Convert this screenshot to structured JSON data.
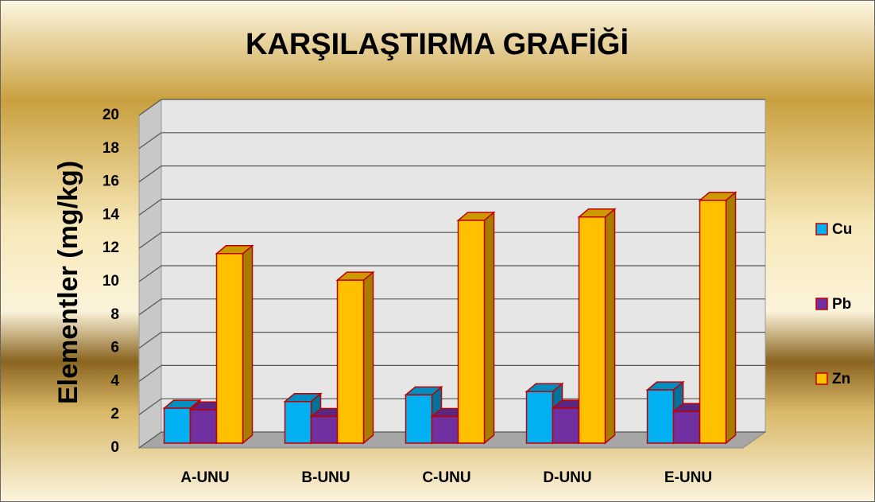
{
  "chart_data": {
    "type": "bar3d",
    "title": "KARŞILAŞTIRMA GRAFİĞİ",
    "y_label": "Elementler (mg/kg)",
    "categories": [
      "A-UNU",
      "B-UNU",
      "C-UNU",
      "D-UNU",
      "E-UNU"
    ],
    "series": [
      {
        "name": "Cu",
        "color": "#00b0f0",
        "values": [
          2.1,
          2.5,
          2.9,
          3.1,
          3.2
        ]
      },
      {
        "name": "Pb",
        "color": "#7030a0",
        "values": [
          2.0,
          1.6,
          1.6,
          2.1,
          1.9
        ]
      },
      {
        "name": "Zn",
        "color": "#ffc000",
        "values": [
          11.4,
          9.8,
          13.4,
          13.6,
          14.6
        ]
      }
    ],
    "ylim": [
      0,
      20
    ],
    "yticks": [
      0,
      2,
      4,
      6,
      8,
      10,
      12,
      14,
      16,
      18,
      20
    ],
    "grid": true,
    "legend": "right"
  }
}
